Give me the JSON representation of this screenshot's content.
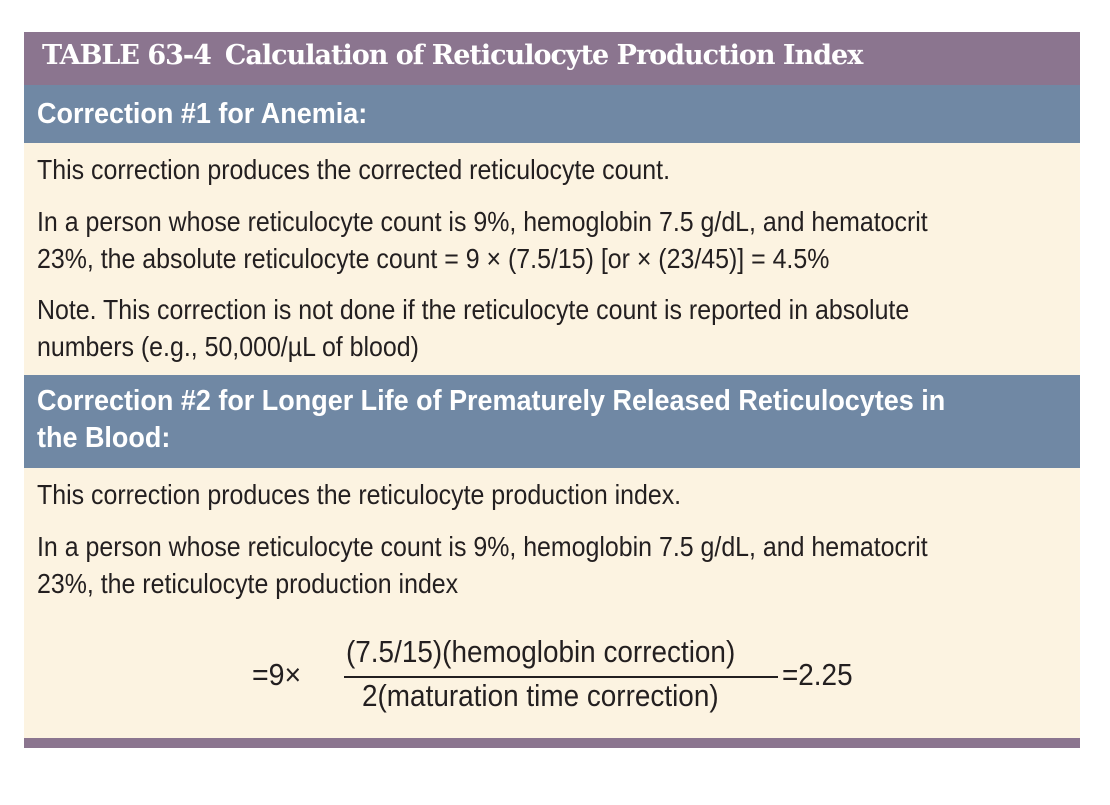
{
  "table": {
    "number": "TABLE 63-4",
    "title": "Calculation of Reticulocyte Production Index"
  },
  "section1": {
    "header": "Correction #1 for Anemia:",
    "paragraphs": [
      "This correction produces the corrected reticulocyte count.",
      "In a person whose reticulocyte count is 9%, hemoglobin 7.5 g/dL, and hematocrit",
      "23%, the absolute reticulocyte count = 9 × (7.5/15) [or × (23/45)] = 4.5%",
      "Note. This correction is not done if the reticulocyte count is reported in absolute",
      "numbers (e.g., 50,000/µL of blood)"
    ]
  },
  "section2": {
    "header_line1": "Correction #2 for Longer Life of Prematurely Released Reticulocytes in",
    "header_line2": "the Blood:",
    "paragraphs": [
      "This correction produces the reticulocyte production index.",
      "In a person whose reticulocyte count is 9%, hemoglobin 7.5 g/dL, and hematocrit",
      "23%, the reticulocyte production index"
    ],
    "formula": {
      "prefix": "=9×",
      "numerator": "(7.5/15)(hemoglobin correction)",
      "denominator": "2(maturation time correction)",
      "result": "=2.25"
    }
  },
  "colors": {
    "title_bar": "#8b758f",
    "section_header": "#7088a4",
    "body_background": "#fcf3e1",
    "text": "#231f20"
  }
}
